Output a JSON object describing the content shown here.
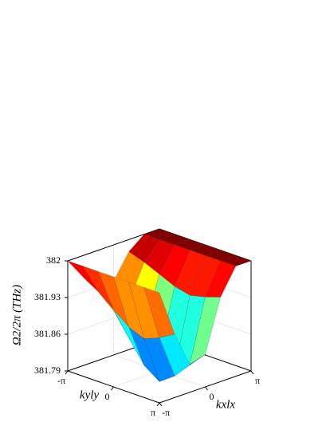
{
  "chart_data": {
    "type": "surface3d",
    "zlabel": "Ω2/2π (THz)",
    "xlabel": "kxlx",
    "ylabel": "kyly",
    "x": [
      -3.142,
      -2.094,
      -1.047,
      0,
      1.047,
      2.094,
      3.142
    ],
    "y": [
      -3.142,
      -2.094,
      -1.047,
      0,
      1.047,
      2.094,
      3.142
    ],
    "z": [
      [
        382,
        381.959,
        381.926,
        381.931,
        381.977,
        382,
        382
      ],
      [
        382,
        381.941,
        381.895,
        381.902,
        381.967,
        382,
        382
      ],
      [
        382,
        381.917,
        381.853,
        381.862,
        381.954,
        382,
        382
      ],
      [
        382,
        381.894,
        381.811,
        381.823,
        381.941,
        382,
        382
      ],
      [
        382,
        381.882,
        381.79,
        381.803,
        381.934,
        382,
        382
      ],
      [
        382,
        381.894,
        381.811,
        381.823,
        381.941,
        382,
        382
      ],
      [
        382,
        381.911,
        381.842,
        381.852,
        381.951,
        382,
        382
      ]
    ],
    "xlim": [
      -3.142,
      3.142
    ],
    "ylim": [
      -3.142,
      3.142
    ],
    "zlim": [
      381.79,
      382
    ],
    "xticks": [
      {
        "value": -3.142,
        "label": "-π"
      },
      0,
      {
        "value": 3.142,
        "label": "π"
      }
    ],
    "yticks": [
      {
        "value": -3.142,
        "label": "-π"
      },
      0,
      {
        "value": 3.142,
        "label": "π"
      }
    ],
    "zticks": [
      381.79,
      381.86,
      381.93,
      382
    ],
    "colormap": "jet",
    "grid": true
  }
}
